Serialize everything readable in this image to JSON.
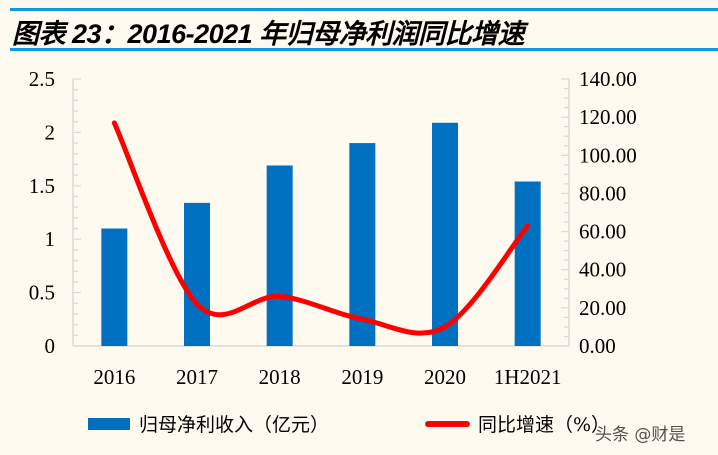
{
  "title": "图表 23：2016-2021 年归母净利润同比增速",
  "watermark": "头条 @财是",
  "chart_data": {
    "type": "bar+line",
    "title": "图表 23：2016-2021 年归母净利润同比增速",
    "categories": [
      "2016",
      "2017",
      "2018",
      "2019",
      "2020",
      "1H2021"
    ],
    "series": [
      {
        "name": "归母净利收入（亿元）",
        "type": "bar",
        "axis": "left",
        "color": "#0070c0",
        "values": [
          1.1,
          1.34,
          1.69,
          1.9,
          2.09,
          1.54
        ]
      },
      {
        "name": "同比增速（%）",
        "type": "line",
        "axis": "right",
        "smooth": true,
        "color": "#ff0000",
        "values": [
          117,
          22,
          26,
          14,
          10,
          63
        ]
      }
    ],
    "y_left": {
      "range": [
        0,
        2.5
      ],
      "ticks": [
        "0",
        "0.5",
        "1",
        "1.5",
        "2",
        "2.5"
      ]
    },
    "y_right": {
      "range": [
        0,
        140
      ],
      "ticks": [
        "0.00",
        "20.00",
        "40.00",
        "60.00",
        "80.00",
        "100.00",
        "120.00",
        "140.00"
      ]
    },
    "grid": false,
    "legend": "bottom"
  }
}
